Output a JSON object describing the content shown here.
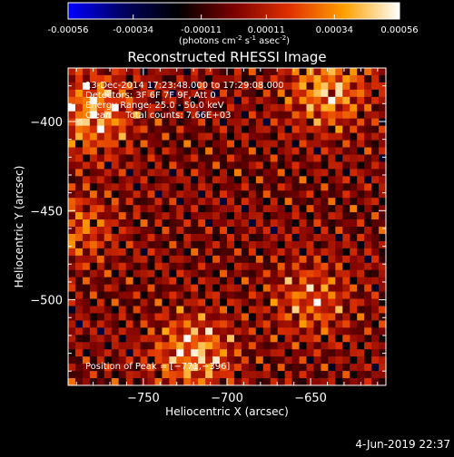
{
  "colorbar": {
    "tick_labels": [
      "-0.00056",
      "-0.00034",
      "-0.00011",
      "0.00011",
      "0.00034",
      "0.00056"
    ],
    "tick_values": [
      -0.00056,
      -0.00034,
      -0.00011,
      0.00011,
      0.00034,
      0.00056
    ],
    "range": [
      -0.00056,
      0.00056
    ],
    "units_text": "(photons cm",
    "units_exp1": "-2",
    "units_mid": " s",
    "units_exp2": "-1",
    "units_tail": " asec",
    "units_exp3": "-2",
    "units_close": ")",
    "colors": [
      "#0000ff",
      "#000060",
      "#000000",
      "#7a0000",
      "#e03000",
      "#ffa000",
      "#ffffff"
    ]
  },
  "chart_data": {
    "type": "heatmap",
    "title": "Reconstructed RHESSI Image",
    "xlabel": "Heliocentric X (arcsec)",
    "ylabel": "Heliocentric Y (arcsec)",
    "xlim": [
      -795,
      -605
    ],
    "ylim": [
      -548,
      -370
    ],
    "x_ticks": [
      -750,
      -700,
      -650
    ],
    "x_tick_labels": [
      "−750",
      "−700",
      "−650"
    ],
    "y_ticks": [
      -400,
      -450,
      -500
    ],
    "y_tick_labels": [
      "−400",
      "−450",
      "−500"
    ],
    "sources": [
      {
        "x": -780,
        "y": -395,
        "value": 0.00056
      },
      {
        "x": -640,
        "y": -383,
        "value": 0.0005
      },
      {
        "x": -720,
        "y": -530,
        "value": 0.00052
      },
      {
        "x": -650,
        "y": -500,
        "value": 0.00035
      },
      {
        "x": -790,
        "y": -460,
        "value": 0.0003
      }
    ],
    "peak": {
      "x": -771,
      "y": -396
    }
  },
  "annotations": {
    "time_range": "13-Dec-2014 17:23:48.000 to 17:29:08.000",
    "detectors": "Detectors: 3F 6F 7F 9F, Att 0",
    "energy": "Energy Range: 25.0 - 50.0 keV",
    "clean": "Clean     Total counts: 7.66E+03",
    "peak_label": "Position of Peak = [−771,−396]"
  },
  "footer": {
    "date": "4-Jun-2019 22:37"
  }
}
